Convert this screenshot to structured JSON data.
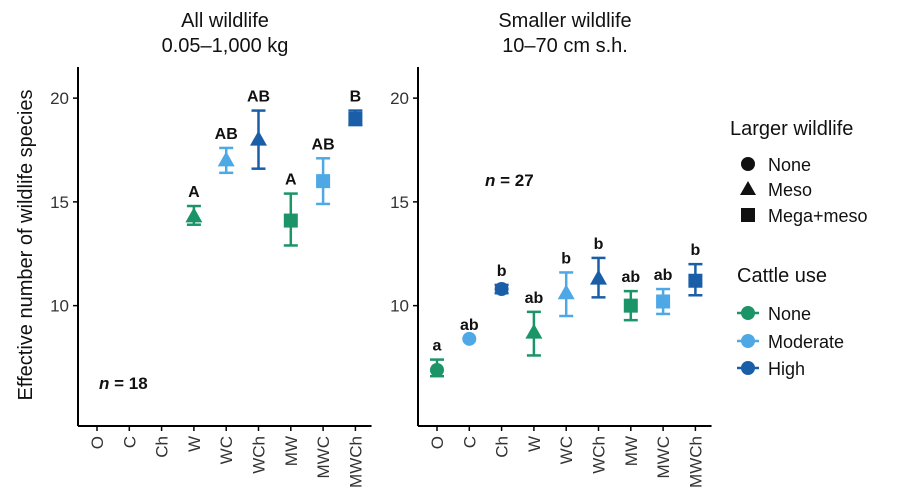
{
  "y_axis_title": "Effective number of wildlife species",
  "chart_data": [
    {
      "type": "scatter",
      "title": "All wildlife",
      "subtitle": "0.05–1,000 kg",
      "categories": [
        "O",
        "C",
        "Ch",
        "W",
        "WC",
        "WCh",
        "MW",
        "MWC",
        "MWCh"
      ],
      "ylim": [
        4.2,
        21.5
      ],
      "yticks": [
        10,
        15,
        20
      ],
      "n_label": "= 18",
      "n_prefix": "n",
      "points": [
        {
          "x": "W",
          "y": 14.3,
          "lo": 13.9,
          "hi": 14.8,
          "shape": "triangle",
          "cattle": "None",
          "label": "A"
        },
        {
          "x": "WC",
          "y": 17.0,
          "lo": 16.4,
          "hi": 17.6,
          "shape": "triangle",
          "cattle": "Moderate",
          "label": "AB"
        },
        {
          "x": "WCh",
          "y": 18.0,
          "lo": 16.6,
          "hi": 19.4,
          "shape": "triangle",
          "cattle": "High",
          "label": "AB"
        },
        {
          "x": "MW",
          "y": 14.1,
          "lo": 12.9,
          "hi": 15.4,
          "shape": "square",
          "cattle": "None",
          "label": "A"
        },
        {
          "x": "MWC",
          "y": 16.0,
          "lo": 14.9,
          "hi": 17.1,
          "shape": "square",
          "cattle": "Moderate",
          "label": "AB"
        },
        {
          "x": "MWCh",
          "y": 19.0,
          "lo": 18.7,
          "hi": 19.4,
          "shape": "square",
          "cattle": "High",
          "label": "B"
        }
      ]
    },
    {
      "type": "scatter",
      "title": "Smaller wildlife",
      "subtitle": "10–70 cm s.h.",
      "categories": [
        "O",
        "C",
        "Ch",
        "W",
        "WC",
        "WCh",
        "MW",
        "MWC",
        "MWCh"
      ],
      "ylim": [
        4.2,
        21.5
      ],
      "yticks": [
        10,
        15,
        20
      ],
      "n_label": "= 27",
      "n_prefix": "n",
      "points": [
        {
          "x": "O",
          "y": 6.9,
          "lo": 6.6,
          "hi": 7.4,
          "shape": "circle",
          "cattle": "None",
          "label": "a"
        },
        {
          "x": "C",
          "y": 8.4,
          "lo": 8.4,
          "hi": 8.4,
          "shape": "circle",
          "cattle": "Moderate",
          "label": "ab"
        },
        {
          "x": "Ch",
          "y": 10.8,
          "lo": 10.6,
          "hi": 11.0,
          "shape": "circle",
          "cattle": "High",
          "label": "b"
        },
        {
          "x": "W",
          "y": 8.7,
          "lo": 7.6,
          "hi": 9.7,
          "shape": "triangle",
          "cattle": "None",
          "label": "ab"
        },
        {
          "x": "WC",
          "y": 10.6,
          "lo": 9.5,
          "hi": 11.6,
          "shape": "triangle",
          "cattle": "Moderate",
          "label": "b"
        },
        {
          "x": "WCh",
          "y": 11.3,
          "lo": 10.4,
          "hi": 12.3,
          "shape": "triangle",
          "cattle": "High",
          "label": "b"
        },
        {
          "x": "MW",
          "y": 10.0,
          "lo": 9.3,
          "hi": 10.7,
          "shape": "square",
          "cattle": "None",
          "label": "ab"
        },
        {
          "x": "MWC",
          "y": 10.2,
          "lo": 9.6,
          "hi": 10.8,
          "shape": "square",
          "cattle": "Moderate",
          "label": "ab"
        },
        {
          "x": "MWCh",
          "y": 11.2,
          "lo": 10.5,
          "hi": 12.0,
          "shape": "square",
          "cattle": "High",
          "label": "b"
        }
      ]
    }
  ],
  "legend": {
    "shape_title": "Larger wildlife",
    "shapes": [
      {
        "shape": "circle",
        "label": "None"
      },
      {
        "shape": "triangle",
        "label": "Meso"
      },
      {
        "shape": "square",
        "label": "Mega+meso"
      }
    ],
    "color_title": "Cattle use",
    "colors": [
      {
        "key": "None",
        "label": "None",
        "color": "#1b9467"
      },
      {
        "key": "Moderate",
        "label": "Moderate",
        "color": "#4ea8e6"
      },
      {
        "key": "High",
        "label": "High",
        "color": "#1a5ea8"
      }
    ]
  }
}
